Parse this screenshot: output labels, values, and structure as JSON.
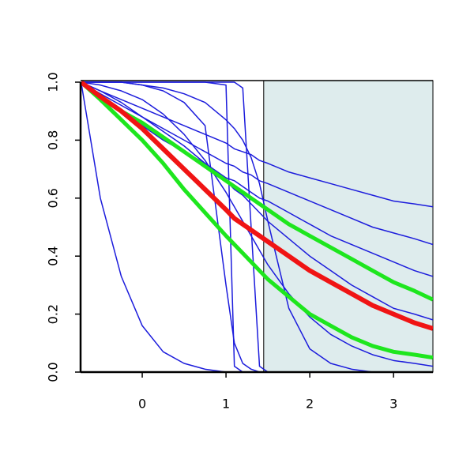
{
  "chart_data": {
    "type": "line",
    "x": [
      -0.73,
      -0.5,
      -0.25,
      0,
      0.25,
      0.5,
      0.75,
      1,
      1.1,
      1.2,
      1.3,
      1.4,
      1.5,
      1.75,
      2,
      2.25,
      2.5,
      2.75,
      3,
      3.25,
      3.47
    ],
    "xlim": [
      -0.736,
      3.47
    ],
    "ylim": [
      0,
      1
    ],
    "xticks": [
      0,
      1,
      2,
      3
    ],
    "yticks": [
      {
        "value": 0,
        "label": "0.0"
      },
      0.2,
      0.4,
      0.6,
      0.8,
      {
        "value": 1,
        "label": "1.0"
      }
    ],
    "shade": {
      "xlim": [
        1.45,
        3.47
      ],
      "color": "#deeced"
    },
    "series": [
      {
        "color": "#1c1cdc",
        "linewidth": 1.5,
        "values": [
          1,
          0.6,
          0.33,
          0.16,
          0.07,
          0.03,
          0.01,
          0,
          0,
          0,
          0,
          0,
          0,
          0,
          0,
          0,
          0,
          0,
          0,
          0,
          0
        ]
      },
      {
        "color": "#1c1cdc",
        "linewidth": 1.5,
        "values": [
          1,
          0.97,
          0.94,
          0.91,
          0.88,
          0.85,
          0.82,
          0.79,
          0.77,
          0.76,
          0.75,
          0.73,
          0.72,
          0.69,
          0.67,
          0.65,
          0.63,
          0.61,
          0.59,
          0.58,
          0.57
        ]
      },
      {
        "color": "#1c1cdc",
        "linewidth": 1.5,
        "values": [
          1,
          0.96,
          0.92,
          0.88,
          0.84,
          0.8,
          0.76,
          0.72,
          0.71,
          0.69,
          0.68,
          0.66,
          0.65,
          0.62,
          0.59,
          0.56,
          0.53,
          0.5,
          0.48,
          0.46,
          0.44
        ]
      },
      {
        "color": "#1c1cdc",
        "linewidth": 1.5,
        "values": [
          1,
          0.95,
          0.9,
          0.85,
          0.8,
          0.76,
          0.72,
          0.67,
          0.66,
          0.64,
          0.62,
          0.6,
          0.59,
          0.55,
          0.51,
          0.47,
          0.44,
          0.41,
          0.38,
          0.35,
          0.33
        ]
      },
      {
        "color": "#1c1cdc",
        "linewidth": 1.5,
        "values": [
          1,
          1,
          1,
          0.99,
          0.97,
          0.93,
          0.85,
          0.3,
          0.1,
          0.03,
          0.01,
          0,
          0,
          0,
          0,
          0,
          0,
          0,
          0,
          0,
          0
        ]
      },
      {
        "color": "#1c1cdc",
        "linewidth": 1.5,
        "values": [
          1,
          1,
          1,
          1,
          1,
          1,
          1,
          0.99,
          0.02,
          0,
          0,
          0,
          0,
          0,
          0,
          0,
          0,
          0,
          0,
          0,
          0
        ]
      },
      {
        "color": "#1c1cdc",
        "linewidth": 1.5,
        "values": [
          1,
          1,
          1,
          1,
          1,
          1,
          1,
          1,
          1,
          0.98,
          0.5,
          0.02,
          0,
          0,
          0,
          0,
          0,
          0,
          0,
          0,
          0
        ]
      },
      {
        "color": "#1c1cdc",
        "linewidth": 1.5,
        "values": [
          1,
          1,
          1,
          0.99,
          0.98,
          0.96,
          0.93,
          0.87,
          0.84,
          0.8,
          0.74,
          0.65,
          0.52,
          0.22,
          0.08,
          0.03,
          0.01,
          0,
          0,
          0,
          0
        ]
      },
      {
        "color": "#1c1cdc",
        "linewidth": 1.5,
        "values": [
          1,
          0.99,
          0.97,
          0.94,
          0.89,
          0.82,
          0.73,
          0.62,
          0.57,
          0.52,
          0.47,
          0.42,
          0.37,
          0.27,
          0.19,
          0.13,
          0.09,
          0.06,
          0.04,
          0.03,
          0.02
        ]
      },
      {
        "color": "#1c1cdc",
        "linewidth": 1.5,
        "values": [
          1,
          0.97,
          0.93,
          0.88,
          0.83,
          0.78,
          0.72,
          0.66,
          0.63,
          0.61,
          0.58,
          0.55,
          0.52,
          0.46,
          0.4,
          0.35,
          0.3,
          0.26,
          0.22,
          0.2,
          0.18
        ]
      },
      {
        "color": "#1ee61e",
        "linewidth": 5,
        "values": [
          1,
          0.95,
          0.9,
          0.86,
          0.81,
          0.76,
          0.71,
          0.66,
          0.64,
          0.62,
          0.6,
          0.58,
          0.56,
          0.51,
          0.47,
          0.43,
          0.39,
          0.35,
          0.31,
          0.28,
          0.25
        ]
      },
      {
        "color": "#1ee61e",
        "linewidth": 5,
        "values": [
          1,
          0.94,
          0.87,
          0.8,
          0.72,
          0.63,
          0.55,
          0.47,
          0.44,
          0.41,
          0.38,
          0.35,
          0.32,
          0.26,
          0.2,
          0.16,
          0.12,
          0.09,
          0.07,
          0.06,
          0.05
        ]
      },
      {
        "color": "#f01414",
        "linewidth": 6,
        "values": [
          1,
          0.95,
          0.9,
          0.84,
          0.77,
          0.7,
          0.63,
          0.56,
          0.53,
          0.51,
          0.49,
          0.47,
          0.45,
          0.4,
          0.35,
          0.31,
          0.27,
          0.23,
          0.2,
          0.17,
          0.15
        ]
      }
    ]
  }
}
